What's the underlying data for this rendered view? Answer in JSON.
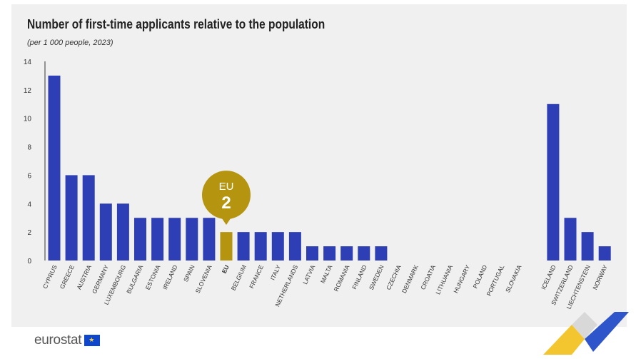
{
  "header": {
    "title": "Number of first-time applicants relative to the population",
    "subtitle": "(per 1 000 people, 2023)"
  },
  "footer": {
    "logo_text": "eurostat"
  },
  "colors": {
    "bar": "#2e3fb5",
    "highlight": "#b5950f",
    "panel": "#f0f0f0"
  },
  "chart_data": {
    "type": "bar",
    "title": "Number of first-time applicants relative to the population",
    "subtitle": "(per 1 000 people, 2023)",
    "xlabel": "",
    "ylabel": "",
    "ylim": [
      0,
      14
    ],
    "yticks": [
      "0",
      "2",
      "4",
      "6",
      "8",
      "10",
      "12",
      "14"
    ],
    "grid": false,
    "categories": [
      "CYPRUS",
      "GREECE",
      "AUSTRIA",
      "GERMANY",
      "LUXEMBOURG",
      "BULGARIA",
      "ESTONIA",
      "IRELAND",
      "SPAIN",
      "SLOVENIA",
      "EU",
      "BELGIUM",
      "FRANCE",
      "ITALY",
      "NETHERLANDS",
      "LATVIA",
      "MALTA",
      "ROMANIA",
      "FINLAND",
      "SWEDEN",
      "CZECHIA",
      "DENMARK",
      "CROATIA",
      "LITHUANIA",
      "HUNGARY",
      "POLAND",
      "PORTUGAL",
      "SLOVAKIA",
      "",
      "ICELAND",
      "SWITZERLAND",
      "LIECHTENSTEIN",
      "NORWAY"
    ],
    "values": [
      13,
      6,
      6,
      4,
      4,
      3,
      3,
      3,
      3,
      3,
      2,
      2,
      2,
      2,
      2,
      1,
      1,
      1,
      1,
      1,
      0,
      0,
      0,
      0,
      0,
      0,
      0,
      0,
      null,
      11,
      3,
      2,
      1
    ],
    "highlight_index": 10,
    "callout": {
      "label": "EU",
      "value": "2"
    }
  }
}
